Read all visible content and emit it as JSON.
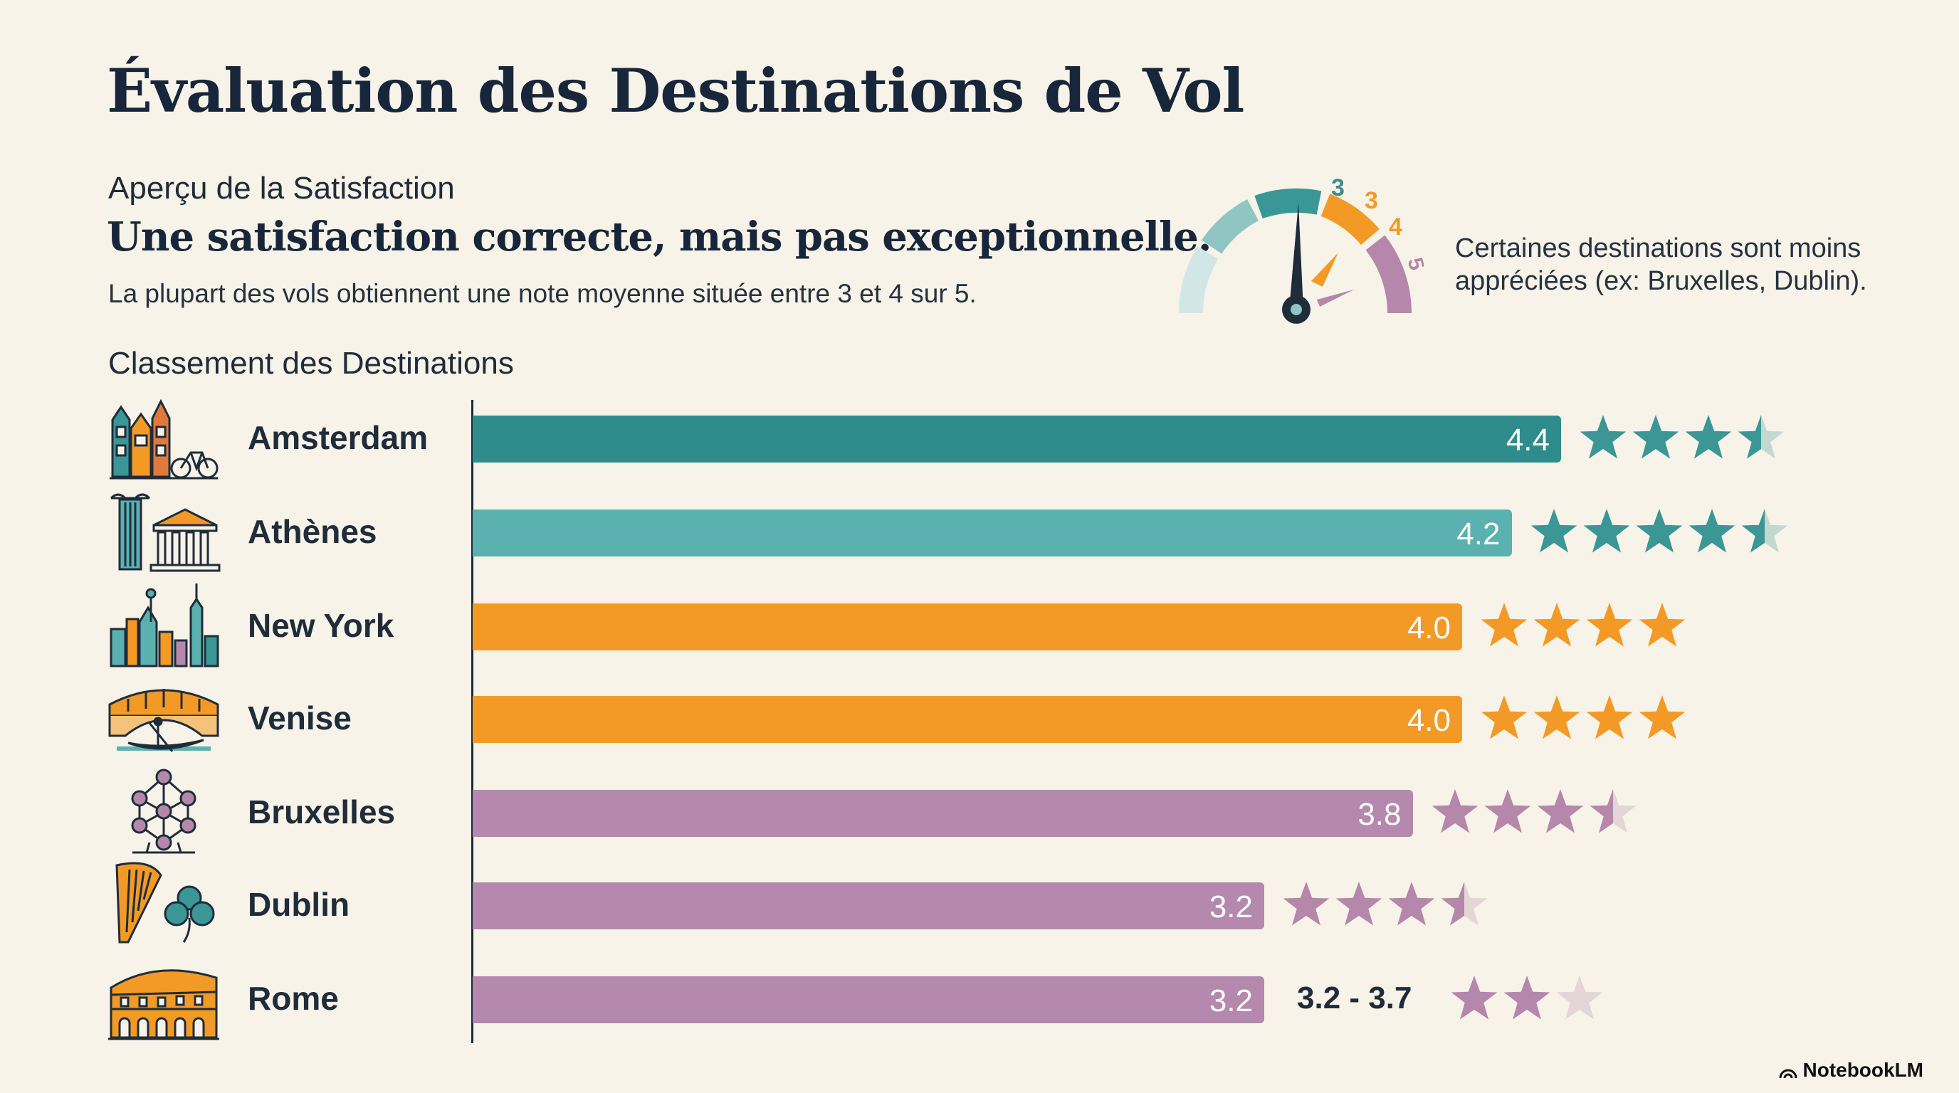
{
  "title": "Évaluation des Destinations de Vol",
  "overview": {
    "label": "Aperçu de la Satisfaction",
    "headline": "Une satisfaction correcte, mais pas exceptionnelle.",
    "subline": "La plupart des vols obtiennent une note moyenne située entre 3 et 4 sur 5."
  },
  "gauge": {
    "labels": [
      "3",
      "3",
      "4",
      "5"
    ],
    "note": "Certaines destinations sont moins appréciées (ex: Bruxelles, Dublin)."
  },
  "ranking_label": "Classement des Destinations",
  "brand": "NotebookLM",
  "colors": {
    "teal_dark": "#2f8c8c",
    "teal": "#5bb1b0",
    "orange": "#f39a26",
    "purple": "#b588ae",
    "star_teal": "#3b9696",
    "star_orange": "#f39a26",
    "star_purple": "#b587ab"
  },
  "chart_data": {
    "type": "bar",
    "orientation": "horizontal",
    "title": "Classement des Destinations",
    "xlim": [
      0,
      5
    ],
    "categories": [
      "Amsterdam",
      "Athènes",
      "New York",
      "Venise",
      "Bruxelles",
      "Dublin",
      "Rome"
    ],
    "values": [
      4.4,
      4.2,
      4.0,
      4.0,
      3.8,
      3.2,
      3.2
    ],
    "value_labels": [
      "4.4",
      "4.2",
      "4.0",
      "4.0",
      "3.8",
      "3.2",
      "3.2"
    ],
    "stars": [
      3.5,
      4.5,
      4,
      4,
      3.5,
      3.5,
      2
    ],
    "star_slots": [
      4,
      5,
      4,
      4,
      4,
      4,
      3
    ],
    "bar_colors": [
      "teal_dark",
      "teal",
      "orange",
      "orange",
      "purple",
      "purple",
      "purple"
    ],
    "icons": [
      "amsterdam-houses-icon",
      "athens-temple-icon",
      "new-york-skyline-icon",
      "venice-bridge-icon",
      "brussels-atomium-icon",
      "dublin-harp-shamrock-icon",
      "rome-colosseum-icon"
    ],
    "annotations": [
      {
        "category": "Rome",
        "text": "3.2 - 3.7"
      }
    ]
  }
}
